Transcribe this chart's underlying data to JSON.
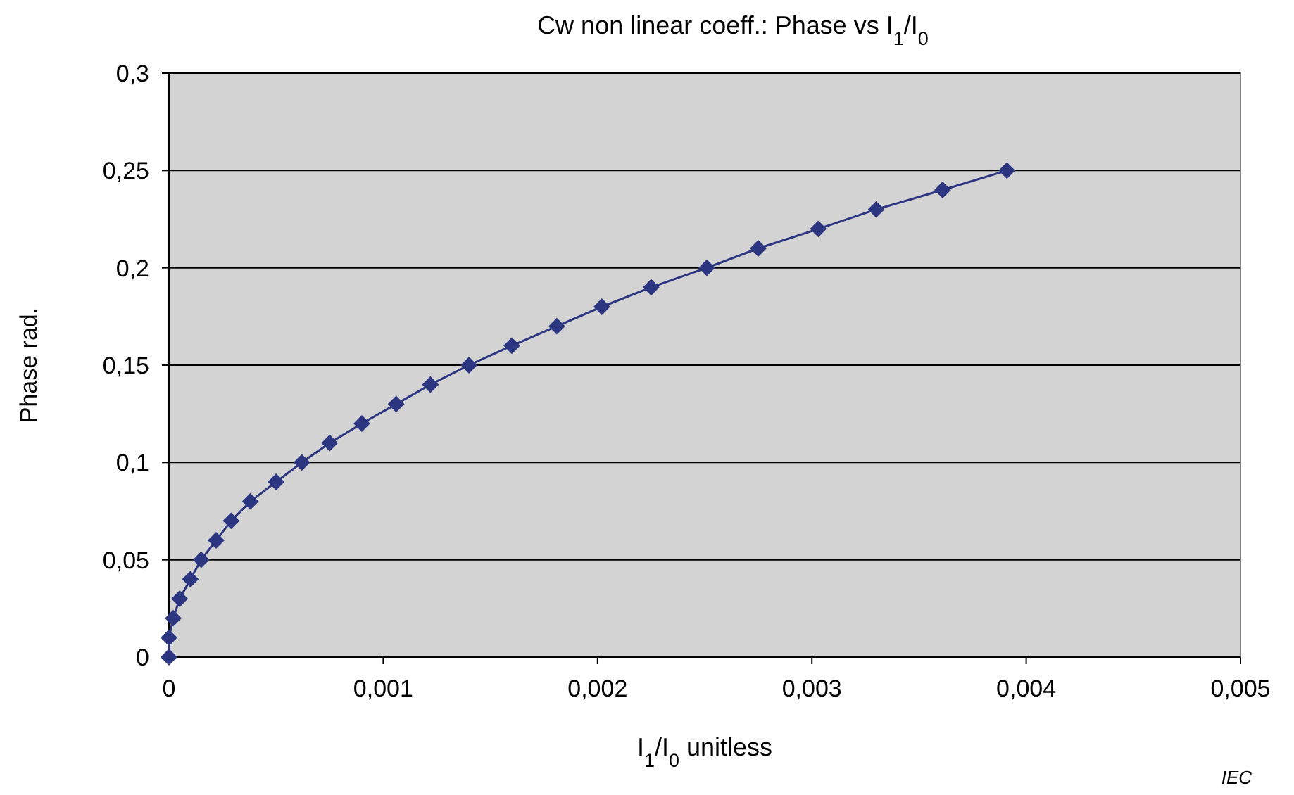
{
  "chart_data": {
    "type": "line",
    "title": "Cw non linear coeff.:  Phase vs I$_{1}$/I$_{0}$",
    "xlabel": "I$_{1}$/I$_{0}$  unitless",
    "ylabel": "Phase  rad.",
    "annotations": [
      "IEC"
    ],
    "series": [
      {
        "color": "#2b3580",
        "x": [
          0,
          0,
          2e-05,
          5e-05,
          0.0001,
          0.00015,
          0.00022,
          0.00029,
          0.00038,
          0.0005,
          0.00062,
          0.00075,
          0.0009,
          0.00106,
          0.00122,
          0.0014,
          0.0016,
          0.00181,
          0.00202,
          0.00225,
          0.00251,
          0.00275,
          0.00303,
          0.0033,
          0.00361,
          0.00391
        ],
        "values": [
          0,
          0.01,
          0.02,
          0.03,
          0.04,
          0.05,
          0.06,
          0.07,
          0.08,
          0.09,
          0.1,
          0.11,
          0.12,
          0.13,
          0.14,
          0.15,
          0.16,
          0.17,
          0.18,
          0.19,
          0.2,
          0.21,
          0.22,
          0.23,
          0.24,
          0.25
        ]
      }
    ],
    "xlim": [
      0,
      0.005
    ],
    "xticks": [
      0,
      {
        "value": 0.001,
        "label": "0,001"
      },
      {
        "value": 0.002,
        "label": "0,002"
      },
      {
        "value": 0.003,
        "label": "0,003"
      },
      {
        "value": 0.004,
        "label": "0,004"
      },
      {
        "value": 0.005,
        "label": "0,005"
      }
    ],
    "ylim": [
      0,
      0.3
    ],
    "yticks": [
      0,
      {
        "value": 0.05,
        "label": "0,05"
      },
      {
        "value": 0.1,
        "label": "0,1"
      },
      {
        "value": 0.15,
        "label": "0,15"
      },
      {
        "value": 0.2,
        "label": "0,2"
      },
      {
        "value": 0.25,
        "label": "0,25"
      },
      {
        "value": 0.3,
        "label": "0,3"
      }
    ],
    "grid": "y",
    "marker": "diamond",
    "line_style": "solid"
  }
}
